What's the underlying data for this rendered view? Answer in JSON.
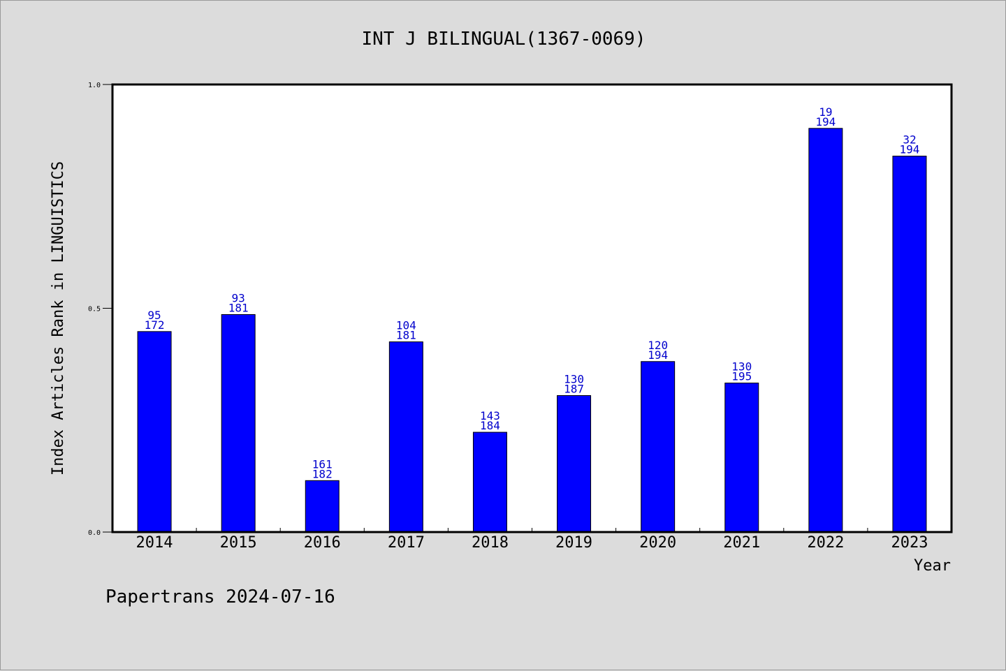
{
  "chart_data": {
    "type": "bar",
    "title": "INT J BILINGUAL(1367-0069)",
    "xlabel": "Year",
    "ylabel": "Index Articles Rank in LINGUISTICS",
    "ylim": [
      0,
      1
    ],
    "yticks": [
      "0.0",
      "0.5",
      "1.0"
    ],
    "categories": [
      "2014",
      "2015",
      "2016",
      "2017",
      "2018",
      "2019",
      "2020",
      "2021",
      "2022",
      "2023"
    ],
    "values": [
      0.448,
      0.486,
      0.115,
      0.425,
      0.223,
      0.305,
      0.381,
      0.333,
      0.902,
      0.84
    ],
    "rank": [
      "95",
      "93",
      "161",
      "104",
      "143",
      "130",
      "120",
      "130",
      "19",
      "32"
    ],
    "total": [
      "172",
      "181",
      "182",
      "181",
      "184",
      "187",
      "194",
      "195",
      "194",
      "194"
    ],
    "bar_color": "#0000ff",
    "label_color": "#0000cc",
    "grid": false,
    "legend": "none"
  },
  "footer": "Papertrans 2024-07-16"
}
